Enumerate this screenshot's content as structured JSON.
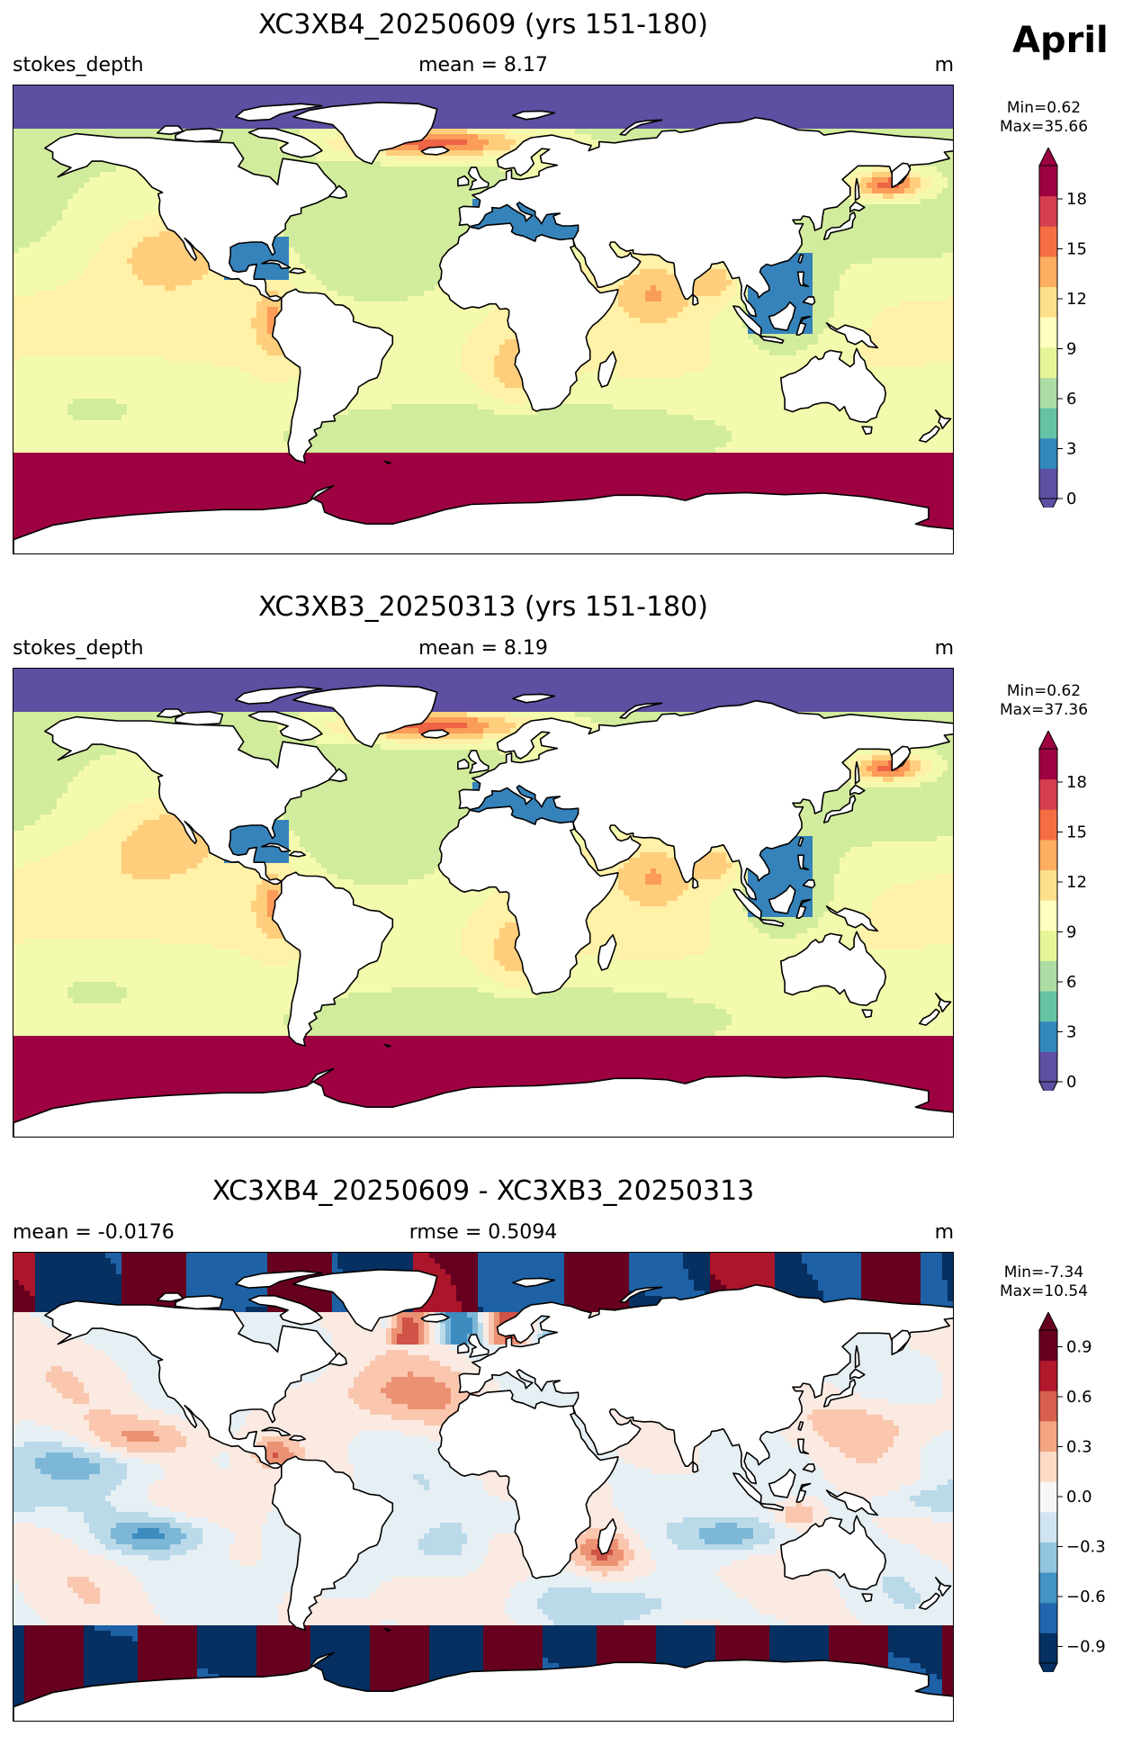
{
  "month_label": "April",
  "variable_units": "m",
  "colors": {
    "spectral": [
      "#5e4fa2",
      "#3288bd",
      "#66c2a5",
      "#abdda4",
      "#e6f598",
      "#ffffbf",
      "#fee08b",
      "#fdae61",
      "#f46d43",
      "#d53e4f",
      "#9e0142"
    ],
    "rdbu": [
      "#053061",
      "#2166ac",
      "#4393c3",
      "#92c5de",
      "#d1e5f0",
      "#f7f7f7",
      "#fddbc7",
      "#f4a582",
      "#d6604d",
      "#b2182b",
      "#67001f"
    ],
    "land": "#ffffff",
    "coast": "#000000"
  },
  "panels": [
    {
      "title": "XC3XB4_20250609 (yrs 151-180)",
      "left_label": "stokes_depth",
      "center_label": "mean = 8.17",
      "right_label": "m",
      "min_label": "Min=0.62",
      "max_label": "Max=35.66",
      "colorbar": {
        "cmap": "spectral",
        "vmin": 0,
        "vmax": 20,
        "ticks": [
          "18",
          "15",
          "12",
          "9",
          "6",
          "3",
          "0"
        ],
        "tick_values": [
          18,
          15,
          12,
          9,
          6,
          3,
          0
        ]
      }
    },
    {
      "title": "XC3XB3_20250313 (yrs 151-180)",
      "left_label": "stokes_depth",
      "center_label": "mean = 8.19",
      "right_label": "m",
      "min_label": "Min=0.62",
      "max_label": "Max=37.36",
      "colorbar": {
        "cmap": "spectral",
        "vmin": 0,
        "vmax": 20,
        "ticks": [
          "18",
          "15",
          "12",
          "9",
          "6",
          "3",
          "0"
        ],
        "tick_values": [
          18,
          15,
          12,
          9,
          6,
          3,
          0
        ]
      }
    },
    {
      "title": "XC3XB4_20250609 - XC3XB3_20250313",
      "left_label": "mean = -0.0176",
      "center_label": "rmse = 0.5094",
      "right_label": "m",
      "min_label": "Min=-7.34",
      "max_label": "Max=10.54",
      "colorbar": {
        "cmap": "rdbu",
        "vmin": -1,
        "vmax": 1,
        "ticks": [
          "0.9",
          "0.6",
          "0.3",
          "0.0",
          "−0.3",
          "−0.6",
          "−0.9"
        ],
        "tick_values": [
          0.9,
          0.6,
          0.3,
          0.0,
          -0.3,
          -0.6,
          -0.9
        ]
      }
    }
  ]
}
